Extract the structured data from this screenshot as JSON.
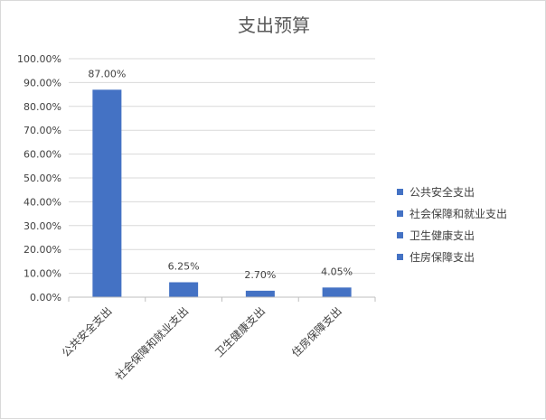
{
  "chart_data": {
    "type": "bar",
    "title": "支出预算",
    "categories": [
      "公共安全支出",
      "社会保障和就业支出",
      "卫生健康支出",
      "住房保障支出"
    ],
    "values": [
      87.0,
      6.25,
      2.7,
      4.05
    ],
    "data_labels": [
      "87.00%",
      "6.25%",
      "2.70%",
      "4.05%"
    ],
    "ylim": [
      0,
      100
    ],
    "yticks": [
      "0.00%",
      "10.00%",
      "20.00%",
      "30.00%",
      "40.00%",
      "50.00%",
      "60.00%",
      "70.00%",
      "80.00%",
      "90.00%",
      "100.00%"
    ],
    "grid": true,
    "legend": {
      "placement": "right",
      "entries": [
        "公共安全支出",
        "社会保障和就业支出",
        "卫生健康支出",
        "住房保障支出"
      ]
    },
    "colors": {
      "bar": "#4472c4",
      "grid": "#d9d9d9",
      "text": "#404040",
      "title": "#595959"
    }
  }
}
